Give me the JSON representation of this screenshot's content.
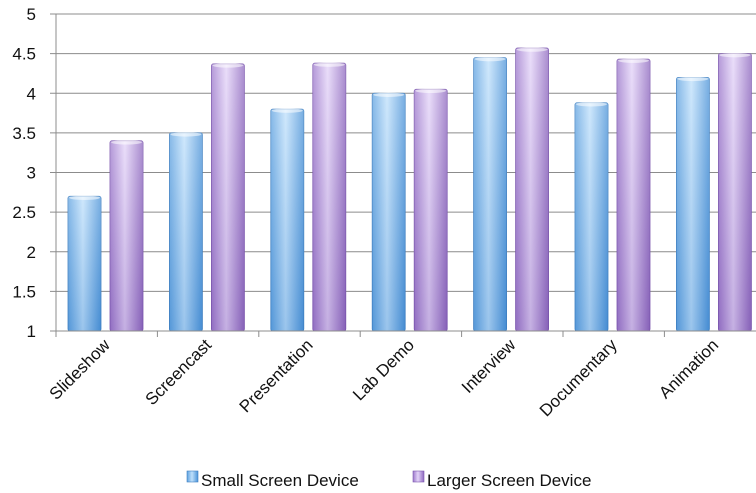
{
  "chart_data": {
    "type": "bar",
    "title": "",
    "xlabel": "",
    "ylabel": "",
    "categories": [
      "Slideshow",
      "Screencast",
      "Presentation",
      "Lab Demo",
      "Interview",
      "Documentary",
      "Animation"
    ],
    "series": [
      {
        "name": "Small Screen Device",
        "values": [
          2.7,
          3.5,
          3.8,
          4.0,
          4.45,
          3.88,
          4.2
        ]
      },
      {
        "name": "Larger Screen Device",
        "values": [
          3.4,
          4.37,
          4.38,
          4.05,
          4.57,
          4.43,
          4.5
        ]
      }
    ],
    "ylim": [
      1,
      5
    ],
    "yticks": [
      "1",
      "1.5",
      "2",
      "2.5",
      "3",
      "3.5",
      "4",
      "4.5",
      "5"
    ],
    "grid": true,
    "legend": "bottom",
    "colors": {
      "series1_light": "#bcdcf8",
      "series1_dark": "#4b93d8",
      "series2_light": "#dfcdf6",
      "series2_dark": "#8e68bf",
      "grid": "#8c8c8c",
      "axis": "#8c8c8c"
    }
  }
}
